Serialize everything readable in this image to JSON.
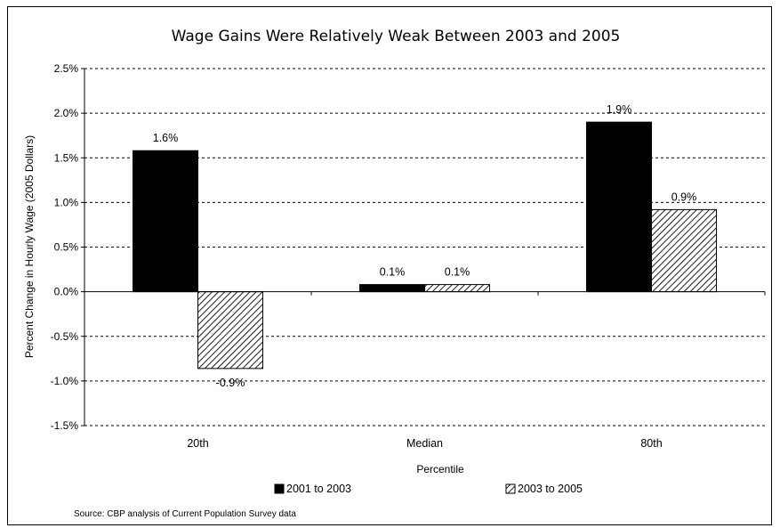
{
  "chart_data": {
    "type": "bar",
    "title": "Wage Gains Were Relatively Weak Between 2003 and 2005",
    "xlabel": "Percentile",
    "ylabel": "Percent Change in Hourly Wage (2005 Dollars)",
    "categories": [
      "20th",
      "Median",
      "80th"
    ],
    "series": [
      {
        "name": "2001 to 2003",
        "values": [
          1.58,
          0.08,
          1.9
        ],
        "labels": [
          "1.6%",
          "0.1%",
          "1.9%"
        ],
        "fill": "solid",
        "color": "#000000"
      },
      {
        "name": "2003 to 2005",
        "values": [
          -0.86,
          0.08,
          0.92
        ],
        "labels": [
          "-0.9%",
          "0.1%",
          "0.9%"
        ],
        "fill": "hatch",
        "color": "#000000"
      }
    ],
    "ylim": [
      -1.5,
      2.5
    ],
    "yticks": [
      2.5,
      2.0,
      1.5,
      1.0,
      0.5,
      0.0,
      -0.5,
      -1.0,
      -1.5
    ],
    "ytick_labels": [
      "2.5%",
      "2.0%",
      "1.5%",
      "1.0%",
      "0.5%",
      "0.0%",
      "-0.5%",
      "-1.0%",
      "-1.5%"
    ],
    "grid": true,
    "legend_position": "bottom"
  },
  "source_note": "Source: CBP analysis of Current Population Survey data"
}
